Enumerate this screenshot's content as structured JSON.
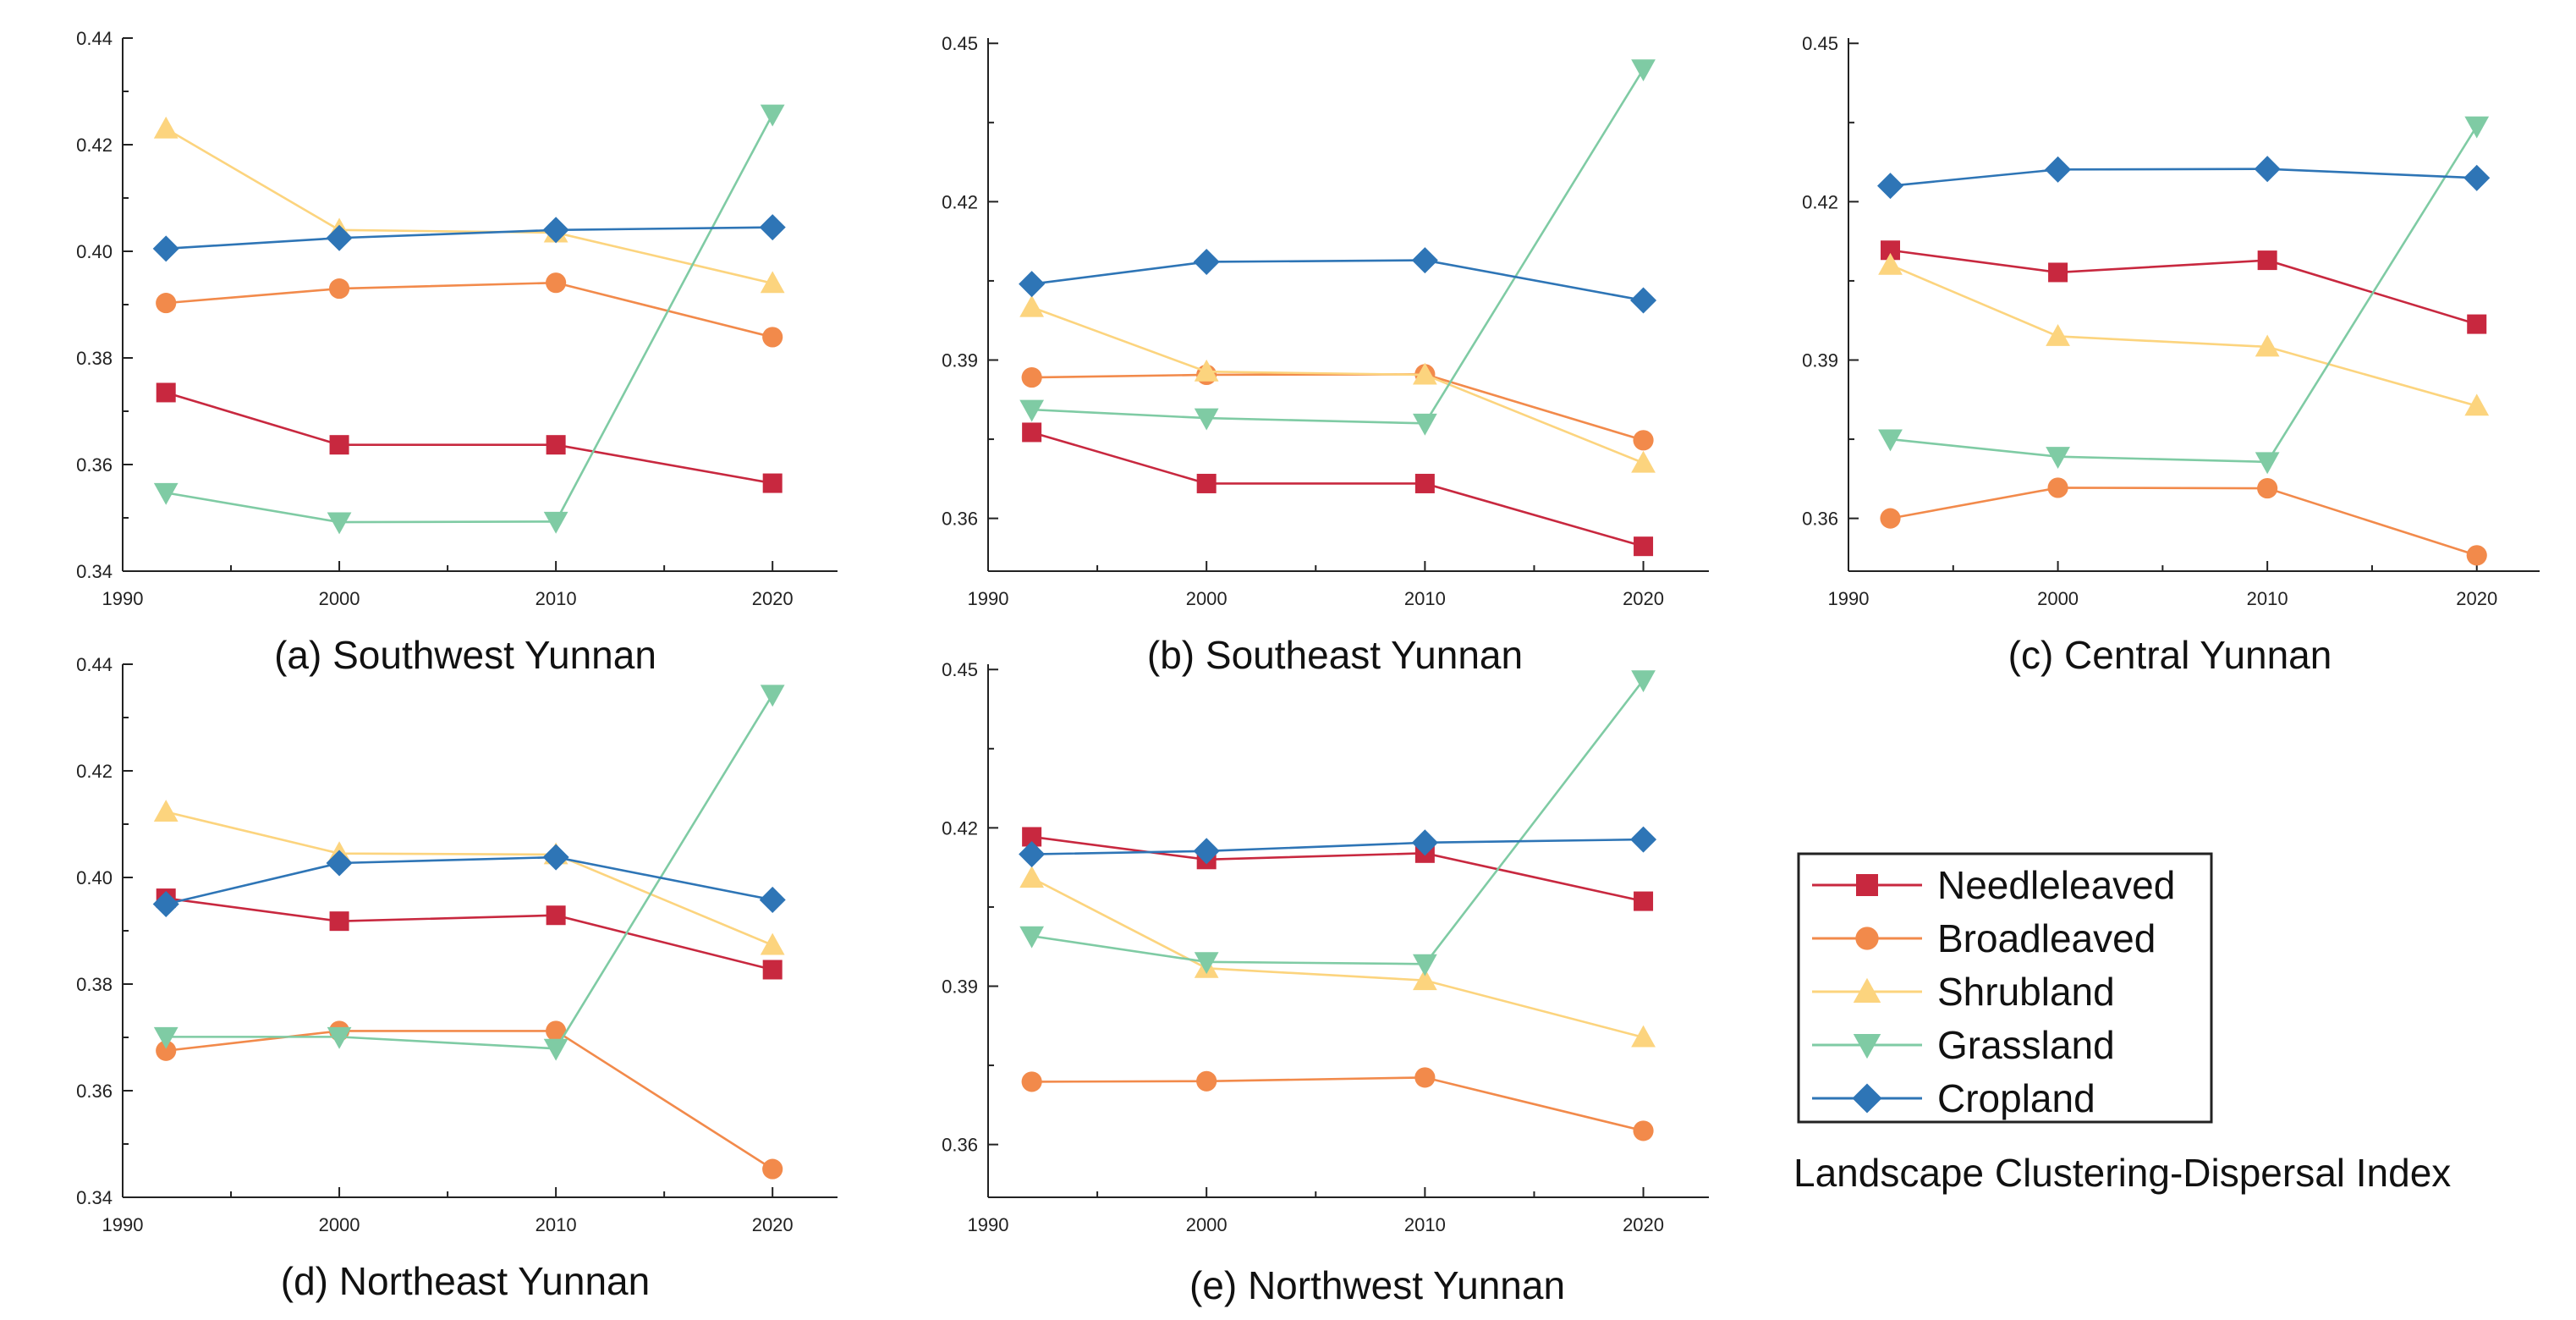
{
  "figure": {
    "caption": "Landscape Clustering-Dispersal Index",
    "legend": [
      {
        "name": "Needleleaved",
        "color": "#c8283f",
        "marker": "square"
      },
      {
        "name": "Broadleaved",
        "color": "#f28a4b",
        "marker": "circle"
      },
      {
        "name": "Shrubland",
        "color": "#fcd47e",
        "marker": "triangle-up"
      },
      {
        "name": "Grassland",
        "color": "#7fcba4",
        "marker": "triangle-down"
      },
      {
        "name": "Cropland",
        "color": "#2e75b6",
        "marker": "diamond"
      }
    ]
  },
  "chart_data": [
    {
      "type": "line",
      "title": "(a)  Southwest Yunnan",
      "x": [
        1992,
        2000,
        2010,
        2020
      ],
      "xlim": [
        1990,
        2023
      ],
      "xticks": [
        1990,
        2000,
        2010,
        2020
      ],
      "ylim": [
        0.34,
        0.44
      ],
      "yticks": [
        0.34,
        0.36,
        0.38,
        0.4,
        0.42,
        0.44
      ],
      "ytick_labels": [
        "0.34",
        "0.36",
        "0.38",
        "0.40",
        "0.42",
        "0.44"
      ],
      "series": [
        {
          "name": "Needleleaved",
          "values": [
            0.3735,
            0.3637,
            0.3637,
            0.3565
          ]
        },
        {
          "name": "Broadleaved",
          "values": [
            0.3903,
            0.393,
            0.3941,
            0.3839
          ]
        },
        {
          "name": "Shrubland",
          "values": [
            0.423,
            0.404,
            0.4035,
            0.394
          ]
        },
        {
          "name": "Grassland",
          "values": [
            0.3547,
            0.3492,
            0.3493,
            0.4257
          ]
        },
        {
          "name": "Cropland",
          "values": [
            0.4005,
            0.4025,
            0.404,
            0.4045
          ]
        }
      ]
    },
    {
      "type": "line",
      "title": "(b)  Southeast Yunnan",
      "x": [
        1992,
        2000,
        2010,
        2020
      ],
      "xlim": [
        1990,
        2023
      ],
      "xticks": [
        1990,
        2000,
        2010,
        2020
      ],
      "ylim": [
        0.35,
        0.451
      ],
      "yticks": [
        0.36,
        0.39,
        0.42,
        0.45
      ],
      "ytick_labels": [
        "0.36",
        "0.39",
        "0.42",
        "0.45"
      ],
      "series": [
        {
          "name": "Needleleaved",
          "values": [
            0.3763,
            0.3666,
            0.3666,
            0.3547
          ]
        },
        {
          "name": "Broadleaved",
          "values": [
            0.3867,
            0.3872,
            0.3873,
            0.3748
          ]
        },
        {
          "name": "Shrubland",
          "values": [
            0.4,
            0.3878,
            0.3872,
            0.3705
          ]
        },
        {
          "name": "Grassland",
          "values": [
            0.3806,
            0.379,
            0.378,
            0.4451
          ]
        },
        {
          "name": "Cropland",
          "values": [
            0.4044,
            0.4086,
            0.4089,
            0.4013
          ]
        }
      ]
    },
    {
      "type": "line",
      "title": "(c)  Central Yunnan",
      "x": [
        1992,
        2000,
        2010,
        2020
      ],
      "xlim": [
        1990,
        2023
      ],
      "xticks": [
        1990,
        2000,
        2010,
        2020
      ],
      "ylim": [
        0.35,
        0.451
      ],
      "yticks": [
        0.36,
        0.39,
        0.42,
        0.45
      ],
      "ytick_labels": [
        "0.36",
        "0.39",
        "0.42",
        "0.45"
      ],
      "series": [
        {
          "name": "Needleleaved",
          "values": [
            0.4108,
            0.4066,
            0.4089,
            0.3968
          ]
        },
        {
          "name": "Broadleaved",
          "values": [
            0.36,
            0.3658,
            0.3657,
            0.353
          ]
        },
        {
          "name": "Shrubland",
          "values": [
            0.408,
            0.3945,
            0.3925,
            0.3813
          ]
        },
        {
          "name": "Grassland",
          "values": [
            0.375,
            0.3717,
            0.3707,
            0.4343
          ]
        },
        {
          "name": "Cropland",
          "values": [
            0.423,
            0.4261,
            0.4262,
            0.4245
          ]
        }
      ]
    },
    {
      "type": "line",
      "title": "(d)  Northeast Yunnan",
      "x": [
        1992,
        2000,
        2010,
        2020
      ],
      "xlim": [
        1990,
        2023
      ],
      "xticks": [
        1990,
        2000,
        2010,
        2020
      ],
      "ylim": [
        0.34,
        0.44
      ],
      "yticks": [
        0.34,
        0.36,
        0.38,
        0.4,
        0.42,
        0.44
      ],
      "ytick_labels": [
        "0.34",
        "0.36",
        "0.38",
        "0.40",
        "0.42",
        "0.44"
      ],
      "series": [
        {
          "name": "Needleleaved",
          "values": [
            0.3961,
            0.3918,
            0.3929,
            0.3827
          ]
        },
        {
          "name": "Broadleaved",
          "values": [
            0.3675,
            0.3712,
            0.3712,
            0.3453
          ]
        },
        {
          "name": "Shrubland",
          "values": [
            0.4123,
            0.4045,
            0.4043,
            0.3873
          ]
        },
        {
          "name": "Grassland",
          "values": [
            0.3701,
            0.3701,
            0.3679,
            0.4343
          ]
        },
        {
          "name": "Cropland",
          "values": [
            0.395,
            0.4027,
            0.4038,
            0.3958
          ]
        }
      ]
    },
    {
      "type": "line",
      "title": "(e)  Northwest Yunnan",
      "x": [
        1992,
        2000,
        2010,
        2020
      ],
      "xlim": [
        1990,
        2023
      ],
      "xticks": [
        1990,
        2000,
        2010,
        2020
      ],
      "ylim": [
        0.35,
        0.451
      ],
      "yticks": [
        0.36,
        0.39,
        0.42,
        0.45
      ],
      "ytick_labels": [
        "0.36",
        "0.39",
        "0.42",
        "0.45"
      ],
      "series": [
        {
          "name": "Needleleaved",
          "values": [
            0.4183,
            0.414,
            0.4152,
            0.4061
          ]
        },
        {
          "name": "Broadleaved",
          "values": [
            0.3719,
            0.372,
            0.3727,
            0.3626
          ]
        },
        {
          "name": "Shrubland",
          "values": [
            0.4105,
            0.3934,
            0.3911,
            0.3803
          ]
        },
        {
          "name": "Grassland",
          "values": [
            0.3995,
            0.3946,
            0.3942,
            0.448
          ]
        },
        {
          "name": "Cropland",
          "values": [
            0.415,
            0.4156,
            0.4172,
            0.4178
          ]
        }
      ]
    }
  ]
}
